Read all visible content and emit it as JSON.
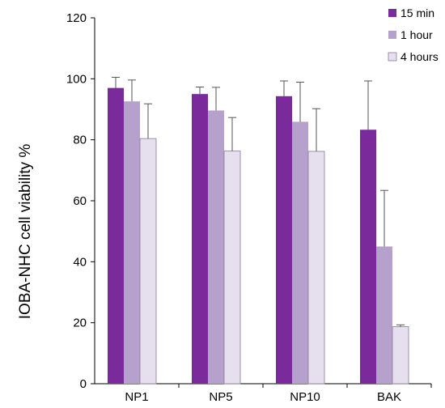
{
  "chart_data": {
    "type": "bar",
    "ylabel": "IOBA-NHC cell viability %",
    "xlabel": "",
    "ylim": [
      0,
      120
    ],
    "yticks": [
      "0",
      "20",
      "40",
      "60",
      "80",
      "100",
      "120"
    ],
    "grid": false,
    "legend_position": "top-right",
    "categories": [
      "NP1",
      "NP5",
      "NP10",
      "BAK"
    ],
    "series": [
      {
        "name": "15 min",
        "color": "#7B2A9B",
        "values": [
          97.0,
          95.0,
          94.3,
          83.3
        ],
        "error": [
          3.5,
          2.3,
          5.0,
          16.0
        ]
      },
      {
        "name": "1 hour",
        "color": "#B6A0CC",
        "values": [
          92.6,
          89.6,
          85.9,
          45.0
        ],
        "error": [
          7.0,
          7.6,
          13.0,
          18.4
        ]
      },
      {
        "name": "4 hours",
        "color": "#E6E0EE",
        "values": [
          80.4,
          76.3,
          76.2,
          18.7
        ],
        "error": [
          11.4,
          11.0,
          14.0,
          0.6
        ]
      }
    ]
  }
}
